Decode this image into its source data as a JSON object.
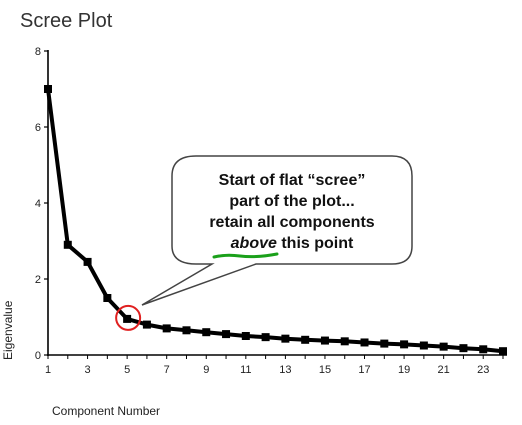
{
  "chart_data": {
    "type": "line",
    "title": "Scree Plot",
    "xlabel": "Component Number",
    "ylabel": "Eigenvalue",
    "x": [
      1,
      2,
      3,
      4,
      5,
      6,
      7,
      8,
      9,
      10,
      11,
      12,
      13,
      14,
      15,
      16,
      17,
      18,
      19,
      20,
      21,
      22,
      23,
      24
    ],
    "values": [
      7.0,
      2.9,
      2.45,
      1.5,
      0.95,
      0.8,
      0.7,
      0.65,
      0.6,
      0.55,
      0.5,
      0.47,
      0.43,
      0.4,
      0.38,
      0.36,
      0.33,
      0.3,
      0.28,
      0.25,
      0.22,
      0.18,
      0.15,
      0.1
    ],
    "xlim": [
      1,
      24
    ],
    "ylim": [
      0,
      8
    ],
    "x_ticks": [
      "1",
      "3",
      "5",
      "7",
      "9",
      "11",
      "13",
      "15",
      "17",
      "19",
      "21",
      "23"
    ],
    "y_ticks": [
      "0",
      "2",
      "4",
      "6",
      "8"
    ],
    "grid": false,
    "line_color": "#000000",
    "highlight": {
      "component": 5,
      "color": "#e02020"
    },
    "annotation": {
      "lines": [
        "Start of flat “scree”",
        "part of the plot...",
        "retain all components"
      ],
      "last_line_emphasis": "above",
      "last_line_rest": " this point",
      "underline_color": "#1aa01a"
    }
  }
}
